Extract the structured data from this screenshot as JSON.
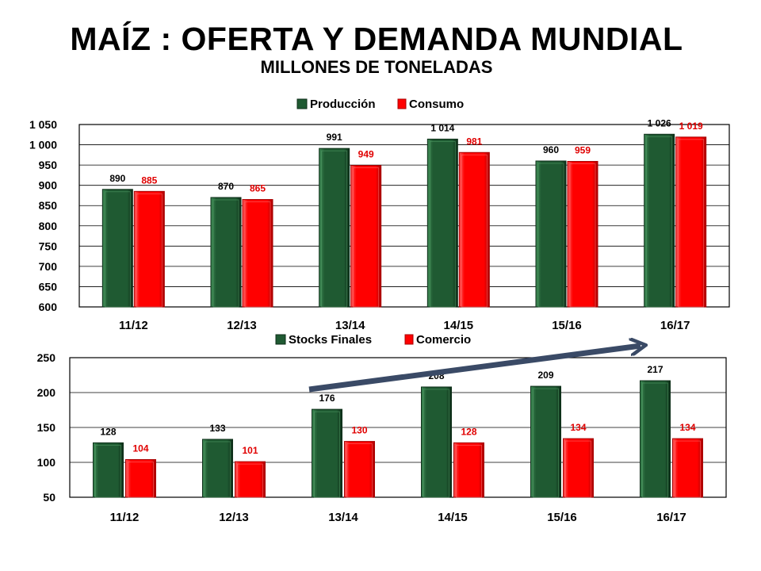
{
  "title": "MAÍZ : OFERTA Y DEMANDA MUNDIAL",
  "subtitle": "MILLONES DE TONELADAS",
  "colors": {
    "green": "#1f5a32",
    "green_dark": "#0d2e18",
    "green_light": "#3f8a55",
    "red": "#ff0000",
    "red_dark": "#a80000",
    "arrow": "#3a4a66"
  },
  "chart_data": [
    {
      "type": "bar",
      "categories": [
        "11/12",
        "12/13",
        "13/14",
        "14/15",
        "15/16",
        "16/17"
      ],
      "series": [
        {
          "name": "Producción",
          "values": [
            890,
            870,
            991,
            1014,
            960,
            1026
          ],
          "labels": [
            "890",
            "870",
            "991",
            "1 014",
            "960",
            "1 026"
          ],
          "color": "#1f5a32"
        },
        {
          "name": "Consumo",
          "values": [
            885,
            865,
            949,
            981,
            959,
            1019
          ],
          "labels": [
            "885",
            "865",
            "949",
            "981",
            "959",
            "1 019"
          ],
          "color": "#ff0000"
        }
      ],
      "ylim": [
        600,
        1050
      ],
      "yticks": [
        600,
        650,
        700,
        750,
        800,
        850,
        900,
        950,
        1000,
        1050
      ],
      "ytick_labels": [
        "600",
        "650",
        "700",
        "750",
        "800",
        "850",
        "900",
        "950",
        "1 000",
        "1 050"
      ],
      "grid": true,
      "legend": "top-center"
    },
    {
      "type": "bar",
      "categories": [
        "11/12",
        "12/13",
        "13/14",
        "14/15",
        "15/16",
        "16/17"
      ],
      "series": [
        {
          "name": "Stocks Finales",
          "values": [
            128,
            133,
            176,
            208,
            209,
            217
          ],
          "labels": [
            "128",
            "133",
            "176",
            "208",
            "209",
            "217"
          ],
          "color": "#1f5a32"
        },
        {
          "name": "Comercio",
          "values": [
            104,
            101,
            130,
            128,
            134,
            134
          ],
          "labels": [
            "104",
            "101",
            "130",
            "128",
            "134",
            "134"
          ],
          "color": "#ff0000"
        }
      ],
      "ylim": [
        50,
        250
      ],
      "yticks": [
        50,
        100,
        150,
        200,
        250
      ],
      "ytick_labels": [
        "50",
        "100",
        "150",
        "200",
        "250"
      ],
      "grid": true,
      "legend": "top-center",
      "annotation": "upward-trend-arrow"
    }
  ]
}
